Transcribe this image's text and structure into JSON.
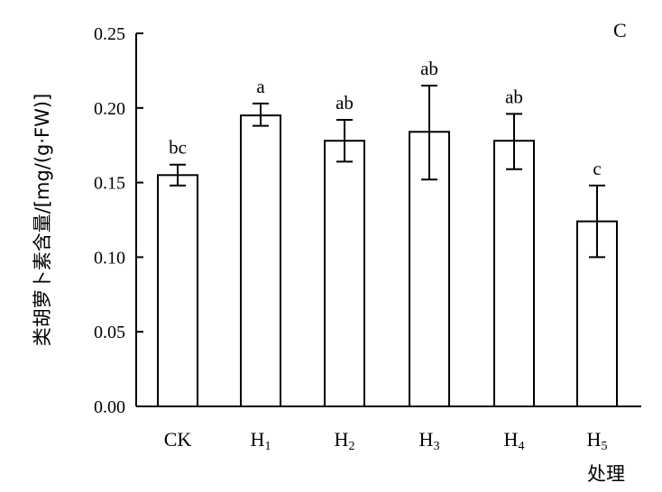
{
  "chart_data": {
    "type": "bar",
    "panel_label": "C",
    "categories": [
      {
        "main": "CK",
        "sub": ""
      },
      {
        "main": "H",
        "sub": "1"
      },
      {
        "main": "H",
        "sub": "2"
      },
      {
        "main": "H",
        "sub": "3"
      },
      {
        "main": "H",
        "sub": "4"
      },
      {
        "main": "H",
        "sub": "5"
      }
    ],
    "values": [
      0.155,
      0.195,
      0.178,
      0.184,
      0.178,
      0.124
    ],
    "error_low": [
      0.148,
      0.188,
      0.164,
      0.152,
      0.159,
      0.1
    ],
    "error_high": [
      0.162,
      0.203,
      0.192,
      0.215,
      0.196,
      0.148
    ],
    "significance": [
      "bc",
      "a",
      "ab",
      "ab",
      "ab",
      "c"
    ],
    "xlabel": "处理",
    "ylabel": "类胡萝卜素含量/[mg/(g·FW)]",
    "ylim": [
      0,
      0.25
    ],
    "yticks": [
      "0.00",
      "0.05",
      "0.10",
      "0.15",
      "0.20",
      "0.25"
    ],
    "grid": false,
    "bar_fill": "#ffffff",
    "bar_stroke": "#000000"
  }
}
